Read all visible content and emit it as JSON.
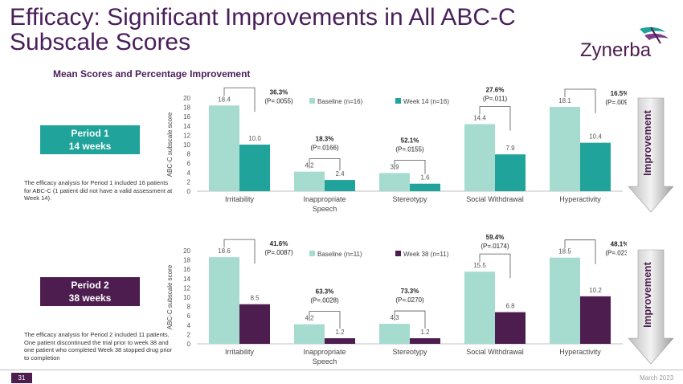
{
  "slide": {
    "title": "Efficacy: Significant Improvements in All ABC-C Subscale Scores",
    "subtitle": "Mean Scores and Percentage Improvement",
    "logo_text": "Zynerba",
    "page_number": "31",
    "date": "March 2023",
    "improvement_label": "Improvement"
  },
  "periods": [
    {
      "line1": "Period 1",
      "line2": "14 weeks",
      "note": "The efficacy analysis for Period 1 included 16 patients for ABC-C (1 patient did not have a valid assessment at Week 14)."
    },
    {
      "line1": "Period 2",
      "line2": "38 weeks",
      "note": "The efficacy analysis for Period 2 included 11 patients. One patient discontinued the trial prior to week 38 and one patient who completed Week 38 stopped drug prior to completion"
    }
  ],
  "colors": {
    "title": "#4a1e5a",
    "baseline": "#a6dcd0",
    "week14": "#1fa39a",
    "week38": "#4d1d4f",
    "period1_box": "#1fa39a",
    "period2_box": "#4d1d4f"
  },
  "chart_data": [
    {
      "type": "bar",
      "categories": [
        "Irritability",
        "Inappropriate Speech",
        "Stereotypy",
        "Social Withdrawal",
        "Hyperactivity"
      ],
      "series": [
        {
          "name": "Baseline (n=16)",
          "values": [
            18.4,
            4.2,
            3.9,
            14.4,
            18.1
          ]
        },
        {
          "name": "Week 14 (n=16)",
          "values": [
            10.0,
            2.4,
            1.6,
            7.9,
            10.4
          ]
        }
      ],
      "ylabel": "ABC-C subscale score",
      "ylim": [
        0,
        20
      ],
      "yticks": [
        0,
        2,
        4,
        6,
        8,
        10,
        12,
        14,
        16,
        18,
        20
      ],
      "annotations": [
        {
          "pct": "36.3%",
          "p": "(P=.0055)"
        },
        {
          "pct": "18.3%",
          "p": "(P=.0166)"
        },
        {
          "pct": "52.1%",
          "p": "(P=.0155)"
        },
        {
          "pct": "27.6%",
          "p": "(P=.011)"
        },
        {
          "pct": "16.5%",
          "p": "(P=.0091)"
        }
      ],
      "legend": "top"
    },
    {
      "type": "bar",
      "categories": [
        "Irritability",
        "Inappropriate Speech",
        "Stereotypy",
        "Social Withdrawal",
        "Hyperactivity"
      ],
      "series": [
        {
          "name": "Baseline (n=11)",
          "values": [
            18.6,
            4.2,
            4.3,
            15.5,
            18.5
          ]
        },
        {
          "name": "Week 38 (n=11)",
          "values": [
            8.5,
            1.2,
            1.2,
            6.8,
            10.2
          ]
        }
      ],
      "ylabel": "ABC-C subscale score",
      "ylim": [
        0,
        20
      ],
      "yticks": [
        0,
        2,
        4,
        6,
        8,
        10,
        12,
        14,
        16,
        18,
        20
      ],
      "annotations": [
        {
          "pct": "41.6%",
          "p": "(P=.0087)"
        },
        {
          "pct": "63.3%",
          "p": "(P=.0028)"
        },
        {
          "pct": "73.3%",
          "p": "(P=.0270)"
        },
        {
          "pct": "59.4%",
          "p": "(P=.0174)"
        },
        {
          "pct": "48.1%",
          "p": "(P=.0232)"
        }
      ],
      "legend": "top"
    }
  ]
}
